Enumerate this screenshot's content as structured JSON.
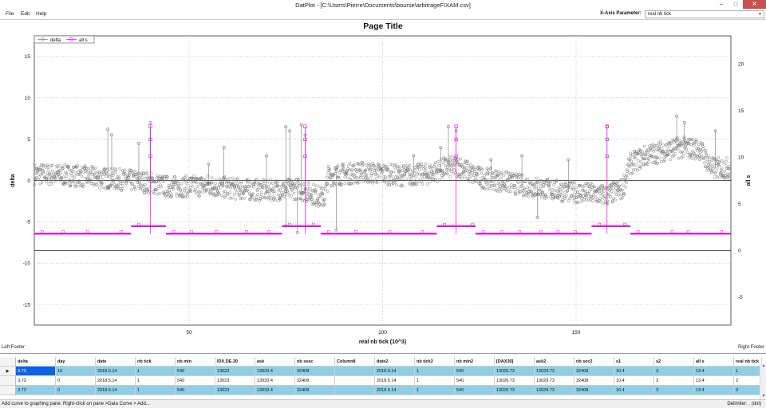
{
  "window": {
    "title": "DatPlot - [C:\\Users\\Pierre\\Documents\\bourse\\arbitrageFIXAM.csv]",
    "minimize": "–",
    "maximize": "□",
    "close": "✕"
  },
  "menu": {
    "items": [
      "File",
      "Edit",
      "Help"
    ],
    "xaxis_label": "X-Axis Parameter:",
    "xaxis_value": "real nb tick"
  },
  "chart": {
    "footer_left": "Left Footer",
    "footer_right": "Right Footer"
  },
  "chart_data": {
    "type": "scatter",
    "title": "Page Title",
    "xlabel": "real nb tick (10^3)",
    "ylabel": "delta",
    "ylabel_right": "all s",
    "xlim": [
      10,
      190
    ],
    "ylim": [
      -17.5,
      17.5
    ],
    "ylim_right": [
      -8,
      23
    ],
    "x_ticks": [
      50,
      100,
      150
    ],
    "y_ticks": [
      -15,
      -10,
      -5,
      0,
      5,
      10,
      15
    ],
    "y_ticks_right": [
      -5,
      0,
      5,
      10,
      15,
      20
    ],
    "grid": true,
    "legend_position": "top-left",
    "horizontal_lines": [
      {
        "axis": "left",
        "y": 0
      },
      {
        "axis": "right",
        "y": 0
      }
    ],
    "series": [
      {
        "name": "delta",
        "axis": "left",
        "color": "#777777",
        "marker": "circle",
        "baseline_profile": [
          [
            10,
            0.8
          ],
          [
            20,
            0.6
          ],
          [
            30,
            0.2
          ],
          [
            35,
            0.0
          ],
          [
            40,
            -0.3
          ],
          [
            45,
            -0.8
          ],
          [
            55,
            -0.6
          ],
          [
            62,
            -1.0
          ],
          [
            70,
            -1.2
          ],
          [
            78,
            -1.0
          ],
          [
            82,
            -1.6
          ],
          [
            85,
            -2.2
          ],
          [
            86,
            0.6
          ],
          [
            95,
            1.0
          ],
          [
            105,
            0.6
          ],
          [
            112,
            0.8
          ],
          [
            116,
            1.5
          ],
          [
            120,
            1.7
          ],
          [
            124,
            0.5
          ],
          [
            130,
            0.0
          ],
          [
            135,
            -0.5
          ],
          [
            145,
            -1.2
          ],
          [
            152,
            -1.5
          ],
          [
            158,
            -1.8
          ],
          [
            162,
            -1.0
          ],
          [
            164,
            2.0
          ],
          [
            168,
            3.0
          ],
          [
            172,
            3.5
          ],
          [
            177,
            4.0
          ],
          [
            182,
            3.8
          ],
          [
            185,
            1.5
          ],
          [
            190,
            1.5
          ]
        ],
        "spikes": [
          [
            29,
            6.2
          ],
          [
            30,
            5.5
          ],
          [
            37,
            4.5
          ],
          [
            40,
            7.0
          ],
          [
            55,
            2.0
          ],
          [
            59,
            4.0
          ],
          [
            70,
            3.0
          ],
          [
            75,
            6.5
          ],
          [
            76,
            6.0
          ],
          [
            79,
            6.8
          ],
          [
            80,
            5.5
          ],
          [
            108,
            3.0
          ],
          [
            115,
            4.0
          ],
          [
            117,
            6.5
          ],
          [
            119,
            6.0
          ],
          [
            128,
            2.5
          ],
          [
            136,
            3.0
          ],
          [
            148,
            2.5
          ],
          [
            158,
            6.5
          ],
          [
            176,
            7.8
          ],
          [
            178,
            7.0
          ],
          [
            186,
            6.0
          ],
          [
            88,
            -6.0
          ],
          [
            75,
            -5.5
          ],
          [
            78,
            -6.3
          ],
          [
            140,
            -4.5
          ]
        ]
      },
      {
        "name": "all s",
        "axis": "right",
        "color": "#e800e8",
        "marker": "square",
        "segments": [
          [
            10,
            35,
            1.8
          ],
          [
            35,
            44,
            2.6
          ],
          [
            44,
            74,
            1.8
          ],
          [
            74,
            84,
            2.6
          ],
          [
            84,
            114,
            1.8
          ],
          [
            114,
            124,
            2.6
          ],
          [
            124,
            154,
            1.8
          ],
          [
            154,
            164,
            2.6
          ],
          [
            164,
            190,
            1.8
          ]
        ],
        "spikes": [
          [
            40,
            13.3
          ],
          [
            80,
            13.3
          ],
          [
            119,
            13.3
          ],
          [
            158,
            13.3
          ]
        ]
      }
    ]
  },
  "table": {
    "columns": [
      "delta",
      "day",
      "date",
      "nb tick",
      "nb min",
      "IDX.DE.30",
      "ask",
      "nb ssec",
      "Column8",
      "date2",
      "nb tick2",
      "nb min2",
      "[DAX30]",
      "ask2",
      "nb sec2",
      "s1",
      "s2",
      "all s",
      "real nb tick"
    ],
    "rows": [
      [
        "3.73",
        "10",
        "2018.5.14",
        "1",
        "540",
        "13023",
        "13033.4",
        "32408",
        "",
        "2018.5.14",
        "1",
        "540",
        "13026.73",
        "13029.73",
        "32408",
        "10.4",
        "3",
        "13.4",
        "1"
      ],
      [
        "3.73",
        "0",
        "2018.5.14",
        "1",
        "540",
        "13023",
        "13033.4",
        "32408",
        "",
        "2018.5.14",
        "1",
        "540",
        "13026.73",
        "13029.73",
        "32408",
        "10.4",
        "3",
        "13.4",
        "2"
      ],
      [
        "3.73",
        "0",
        "2018.5.14",
        "1",
        "540",
        "13023",
        "13033.4",
        "32408",
        "",
        "2018.5.14",
        "1",
        "540",
        "13026.73",
        "13029.73",
        "32408",
        "10.4",
        "3",
        "13.4",
        "3"
      ]
    ],
    "current_row_marker": "▶"
  },
  "status": {
    "left": "Add curve to graphing pane: Right-click on pane >Data Curve > Add...",
    "right": "Delimiter: . (dot)"
  }
}
